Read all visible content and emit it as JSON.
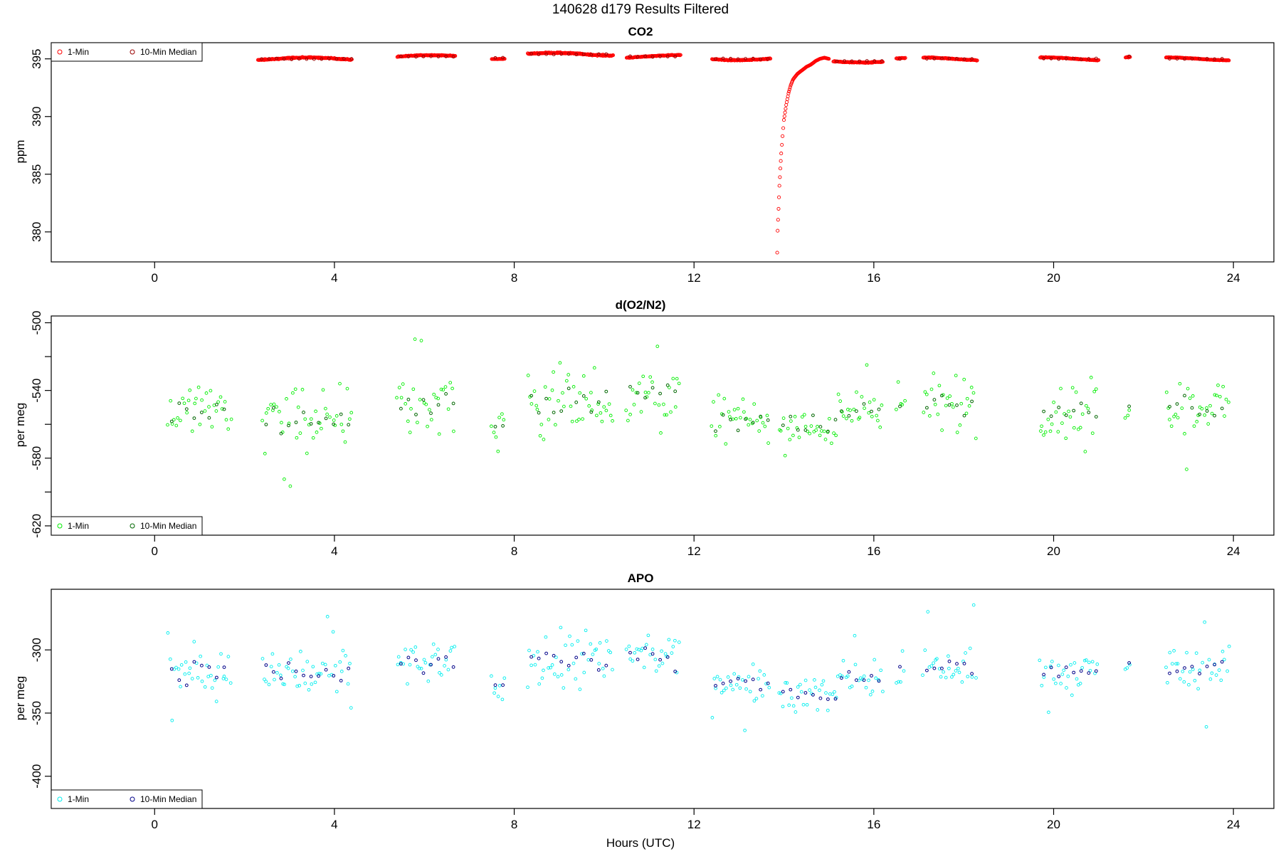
{
  "figure": {
    "title": "140628   d179   Results Filtered",
    "xlabel": "Hours (UTC)"
  },
  "chart_data": [
    {
      "type": "scatter",
      "title": "CO2",
      "xlabel": "",
      "ylabel": "ppm",
      "xlim": [
        -2.3,
        24.9
      ],
      "ylim": [
        377.4,
        396.4
      ],
      "xticks": [
        0,
        4,
        8,
        12,
        16,
        20,
        24
      ],
      "yticks": [
        380,
        385,
        390,
        395
      ],
      "legend_position": "top-left",
      "grid": false,
      "series": [
        {
          "name": "1-Min",
          "color": "#ff0000",
          "kind": "segments",
          "segments": [
            [
              2.3,
              4.4,
              395.0,
              0.1
            ],
            [
              5.4,
              6.7,
              395.2,
              0.08
            ],
            [
              7.5,
              7.8,
              395.1,
              0.05
            ],
            [
              8.3,
              10.2,
              395.4,
              0.12
            ],
            [
              10.5,
              11.7,
              395.2,
              0.08
            ],
            [
              12.4,
              13.7,
              395.0,
              0.1
            ],
            [
              15.1,
              16.2,
              394.8,
              0.1
            ],
            [
              16.5,
              16.7,
              395.0,
              0.08
            ],
            [
              17.1,
              18.3,
              395.0,
              0.08
            ],
            [
              19.7,
              21.0,
              395.0,
              0.08
            ],
            [
              21.6,
              21.7,
              395.2,
              0.08
            ],
            [
              22.5,
              23.9,
              395.0,
              0.06
            ]
          ],
          "curve": {
            "x": [
              13.85,
              13.86,
              13.88,
              13.9,
              13.92,
              13.94,
              13.97,
              14.0,
              14.05,
              14.1,
              14.15,
              14.2,
              14.3,
              14.4,
              14.5,
              14.6,
              14.7,
              14.8,
              14.9,
              15.0
            ],
            "y": [
              378.2,
              380.1,
              382.0,
              384.0,
              385.5,
              386.8,
              388.3,
              389.7,
              391.0,
              392.0,
              392.7,
              393.2,
              393.7,
              394.0,
              394.3,
              394.5,
              394.8,
              395.0,
              395.1,
              395.0
            ]
          }
        },
        {
          "name": "10-Min Median",
          "color": "#990000",
          "kind": "medians"
        }
      ]
    },
    {
      "type": "scatter",
      "title": "d(O2/N2)",
      "xlabel": "",
      "ylabel": "per meg",
      "xlim": [
        -2.3,
        24.9
      ],
      "ylim": [
        -625.5,
        -496.0
      ],
      "xticks": [
        0,
        4,
        8,
        12,
        16,
        20,
        24
      ],
      "yticks": [
        -500,
        -540,
        -580,
        -620
      ],
      "yminor": [
        -520,
        -560,
        -600
      ],
      "legend_position": "bottom-left",
      "grid": false,
      "series": [
        {
          "name": "1-Min",
          "color": "#00ee00",
          "kind": "segments",
          "segments": [
            [
              0.3,
              1.7,
              -553,
              12
            ],
            [
              2.4,
              4.4,
              -557,
              14
            ],
            [
              5.4,
              6.7,
              -548,
              12
            ],
            [
              7.5,
              7.8,
              -563,
              12
            ],
            [
              8.3,
              10.2,
              -545,
              16
            ],
            [
              10.5,
              11.7,
              -543,
              11
            ],
            [
              12.4,
              13.7,
              -558,
              9
            ],
            [
              13.9,
              15.2,
              -562,
              9
            ],
            [
              15.2,
              16.2,
              -551,
              10
            ],
            [
              16.5,
              16.7,
              -547,
              12
            ],
            [
              17.1,
              18.3,
              -548,
              13
            ],
            [
              19.7,
              21.0,
              -553,
              10
            ],
            [
              21.6,
              21.7,
              -550,
              4
            ],
            [
              22.5,
              23.9,
              -550,
              11
            ]
          ]
        },
        {
          "name": "10-Min Median",
          "color": "#006600",
          "kind": "medians"
        }
      ]
    },
    {
      "type": "scatter",
      "title": "APO",
      "xlabel": "Hours (UTC)",
      "ylabel": "per meg",
      "xlim": [
        -2.3,
        24.9
      ],
      "ylim": [
        -425.5,
        -252.0
      ],
      "xticks": [
        0,
        4,
        8,
        12,
        16,
        20,
        24
      ],
      "yticks": [
        -300,
        -350,
        -400
      ],
      "legend_position": "bottom-left",
      "grid": false,
      "series": [
        {
          "name": "1-Min",
          "color": "#00eeee",
          "kind": "segments",
          "segments": [
            [
              0.3,
              1.7,
              -317,
              14
            ],
            [
              2.4,
              4.4,
              -318,
              15
            ],
            [
              5.4,
              6.7,
              -312,
              13
            ],
            [
              7.5,
              7.8,
              -328,
              12
            ],
            [
              8.3,
              10.2,
              -308,
              17
            ],
            [
              10.5,
              11.7,
              -305,
              12
            ],
            [
              12.4,
              13.7,
              -325,
              10
            ],
            [
              13.9,
              15.2,
              -335,
              10
            ],
            [
              15.2,
              16.2,
              -322,
              10
            ],
            [
              16.5,
              16.7,
              -315,
              12
            ],
            [
              17.1,
              18.3,
              -314,
              13
            ],
            [
              19.7,
              21.0,
              -318,
              10
            ],
            [
              21.6,
              21.7,
              -313,
              4
            ],
            [
              22.5,
              23.9,
              -315,
              11
            ]
          ]
        },
        {
          "name": "10-Min Median",
          "color": "#000088",
          "kind": "medians"
        }
      ]
    }
  ]
}
